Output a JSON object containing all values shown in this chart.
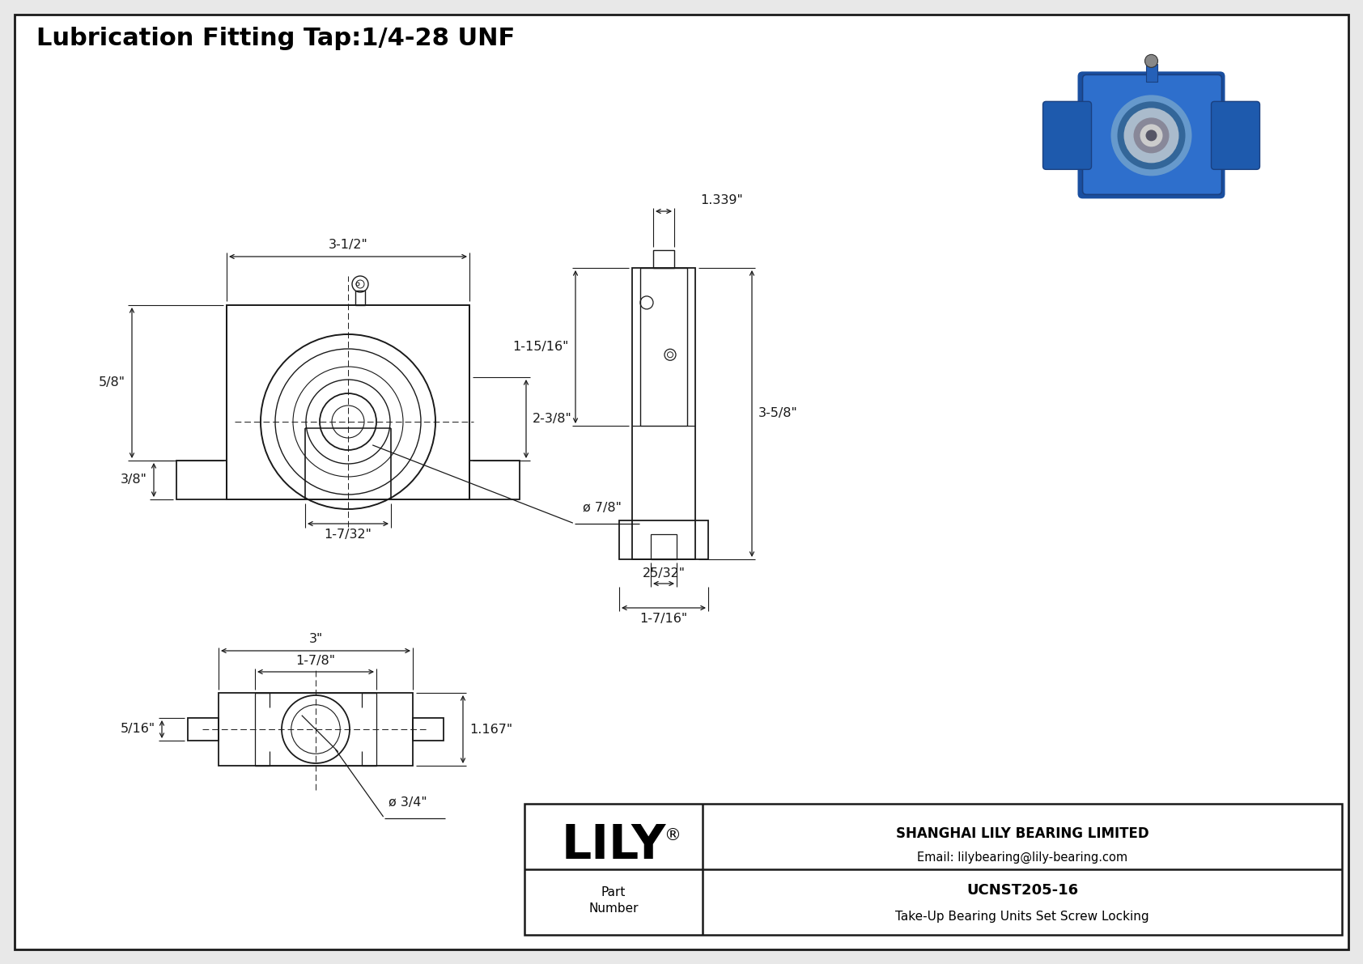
{
  "title": "Lubrication Fitting Tap:1/4-28 UNF",
  "background_color": "#e8e8e8",
  "drawing_bg": "#ffffff",
  "line_color": "#1a1a1a",
  "dim_color": "#1a1a1a",
  "title_fontsize": 22,
  "dim_fontsize": 11.5,
  "company_name": "SHANGHAI LILY BEARING LIMITED",
  "company_email": "Email: lilybearing@lily-bearing.com",
  "part_number": "UCNST205-16",
  "part_desc": "Take-Up Bearing Units Set Screw Locking",
  "part_label": "Part\nNumber",
  "lily_text": "LILY",
  "dims": {
    "front_width": "3-1/2\"",
    "front_height_left": "5/8\"",
    "front_bore_dia": "ø 7/8\"",
    "front_slot_width": "1-7/32\"",
    "front_slot_height": "2-3/8\"",
    "front_foot_height": "3/8\"",
    "side_top_width": "1.339\"",
    "side_height": "3-5/8\"",
    "side_hub_height": "1-15/16\"",
    "side_slot_width": "25/32\"",
    "side_base_width": "1-7/16\"",
    "bot_total_width": "3\"",
    "bot_inner_width": "1-7/8\"",
    "bot_height": "1.167\"",
    "bot_foot_height": "5/16\"",
    "bot_bore_dia": "ø 3/4\""
  }
}
